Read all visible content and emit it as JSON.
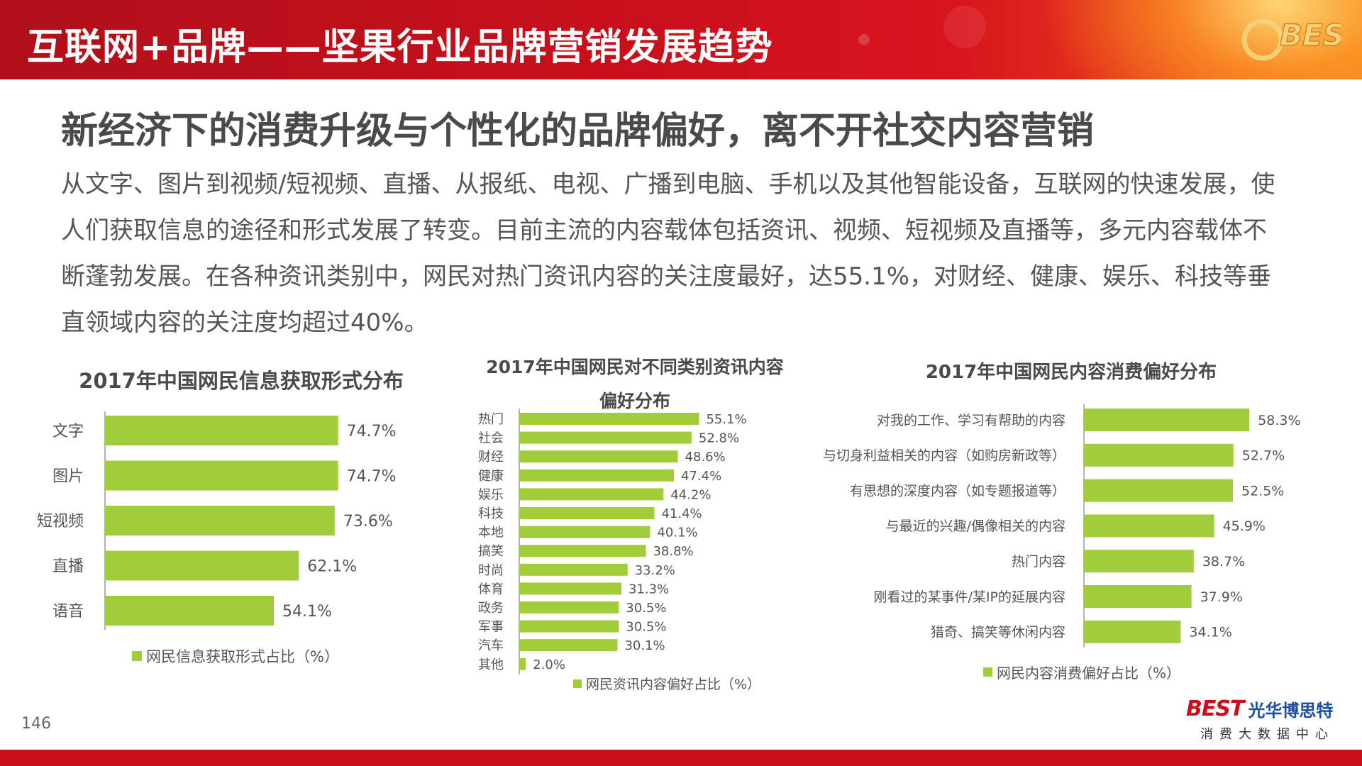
{
  "header": {
    "title": "互联网+品牌——坚果行业品牌营销发展趋势",
    "logo_text": "BEST"
  },
  "main_heading": "新经济下的消费升级与个性化的品牌偏好，离不开社交内容营销",
  "body_text": "从文字、图片到视频/短视频、直播、从报纸、电视、广播到电脑、手机以及其他智能设备，互联网的快速发展，使人们获取信息的途径和形式发展了转变。目前主流的内容载体包括资讯、视频、短视频及直播等，多元内容载体不断蓬勃发展。在各种资讯类别中，网民对热门资讯内容的关注度最好，达55.1%，对财经、健康、娱乐、科技等垂直领域内容的关注度均超过40%。",
  "colors": {
    "bar": "#a2cd3a",
    "brand_red": "#c8101c",
    "brand_blue": "#1d4fa0"
  },
  "chart_data": [
    {
      "type": "bar",
      "orientation": "horizontal",
      "title": "2017年中国网民信息获取形式分布",
      "legend": "网民信息获取形式占比（%）",
      "categories": [
        "文字",
        "图片",
        "短视频",
        "直播",
        "语音"
      ],
      "values": [
        74.7,
        74.7,
        73.6,
        62.1,
        54.1
      ],
      "value_labels": [
        "74.7%",
        "74.7%",
        "73.6%",
        "62.1%",
        "54.1%"
      ]
    },
    {
      "type": "bar",
      "orientation": "horizontal",
      "title": "2017年中国网民对不同类别资讯内容偏好分布",
      "title_lines": [
        "2017年中国网民对不同类别资讯内容",
        "偏好分布"
      ],
      "legend": "网民资讯内容偏好占比（%）",
      "categories": [
        "热门",
        "社会",
        "财经",
        "健康",
        "娱乐",
        "科技",
        "本地",
        "搞笑",
        "时尚",
        "体育",
        "政务",
        "军事",
        "汽车",
        "其他"
      ],
      "values": [
        55.1,
        52.8,
        48.6,
        47.4,
        44.2,
        41.4,
        40.1,
        38.8,
        33.2,
        31.3,
        30.5,
        30.5,
        30.1,
        2.0
      ],
      "value_labels": [
        "55.1%",
        "52.8%",
        "48.6%",
        "47.4%",
        "44.2%",
        "41.4%",
        "40.1%",
        "38.8%",
        "33.2%",
        "31.3%",
        "30.5%",
        "30.5%",
        "30.1%",
        "2.0%"
      ]
    },
    {
      "type": "bar",
      "orientation": "horizontal",
      "title": "2017年中国网民内容消费偏好分布",
      "legend": "网民内容消费偏好占比（%）",
      "categories": [
        "对我的工作、学习有帮助的内容",
        "与切身利益相关的内容（如购房新政等）",
        "有思想的深度内容（如专题报道等）",
        "与最近的兴趣/偶像相关的内容",
        "热门内容",
        "刚看过的某事件/某IP的延展内容",
        "猎奇、搞笑等休闲内容"
      ],
      "values": [
        58.3,
        52.7,
        52.5,
        45.9,
        38.7,
        37.9,
        34.1
      ],
      "value_labels": [
        "58.3%",
        "52.7%",
        "52.5%",
        "45.9%",
        "38.7%",
        "37.9%",
        "34.1%"
      ]
    }
  ],
  "footer": {
    "page_number": "146",
    "logo_best": "BEST",
    "logo_cn": "光华博思特",
    "logo_sub": "消费大数据中心"
  }
}
